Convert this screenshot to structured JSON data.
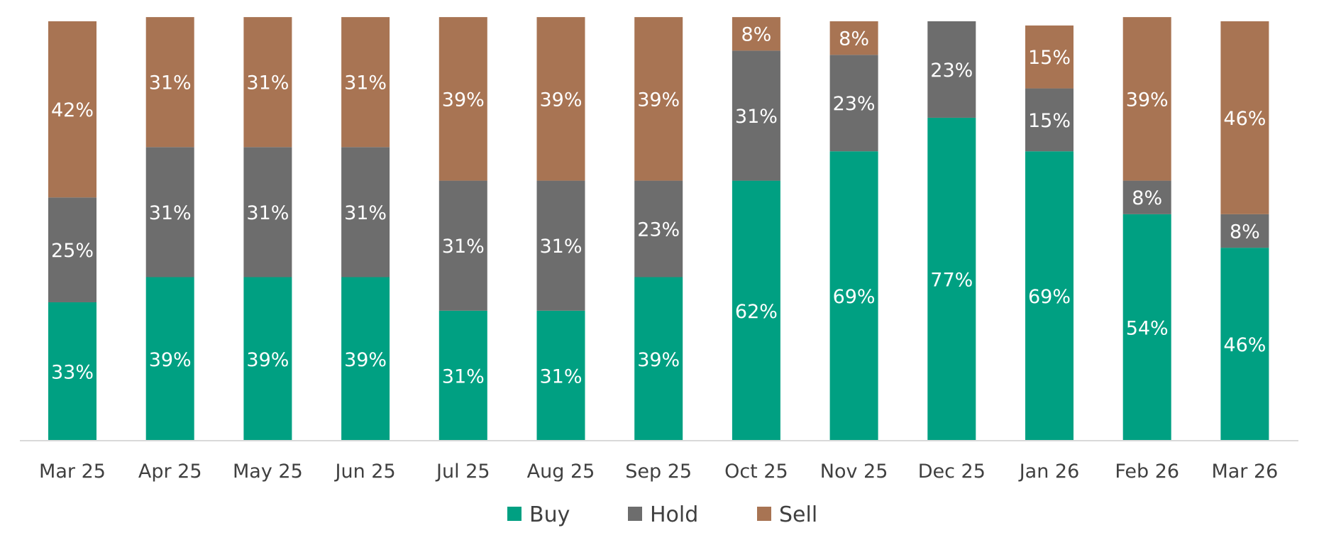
{
  "chart_data": {
    "type": "bar",
    "stacked": true,
    "normalized_to_percent": true,
    "categories": [
      "Mar 25",
      "Apr 25",
      "May 25",
      "Jun 25",
      "Jul 25",
      "Aug 25",
      "Sep 25",
      "Oct 25",
      "Nov 25",
      "Dec 25",
      "Jan 26",
      "Feb 26",
      "Mar 26"
    ],
    "series": [
      {
        "name": "Buy",
        "color": "#00A082",
        "values": [
          33,
          39,
          39,
          39,
          31,
          31,
          39,
          62,
          69,
          77,
          69,
          54,
          46
        ]
      },
      {
        "name": "Hold",
        "color": "#6D6D6D",
        "values": [
          25,
          31,
          31,
          31,
          31,
          31,
          23,
          31,
          23,
          23,
          15,
          8,
          8
        ]
      },
      {
        "name": "Sell",
        "color": "#A87453",
        "values": [
          42,
          31,
          31,
          31,
          39,
          39,
          39,
          8,
          8,
          0,
          15,
          39,
          46
        ]
      }
    ],
    "data_labels": [
      [
        "33%",
        "39%",
        "39%",
        "39%",
        "31%",
        "31%",
        "39%",
        "62%",
        "69%",
        "77%",
        "69%",
        "54%",
        "46%"
      ],
      [
        "25%",
        "31%",
        "31%",
        "31%",
        "31%",
        "31%",
        "23%",
        "31%",
        "23%",
        "23%",
        "15%",
        "8%",
        "8%"
      ],
      [
        "42%",
        "31%",
        "31%",
        "31%",
        "39%",
        "39%",
        "39%",
        "8%",
        "8%",
        "",
        "15%",
        "39%",
        "46%"
      ]
    ],
    "ylim": [
      0,
      100
    ],
    "grid": false,
    "legend": "bottom",
    "title": "",
    "xlabel": "",
    "ylabel": ""
  }
}
